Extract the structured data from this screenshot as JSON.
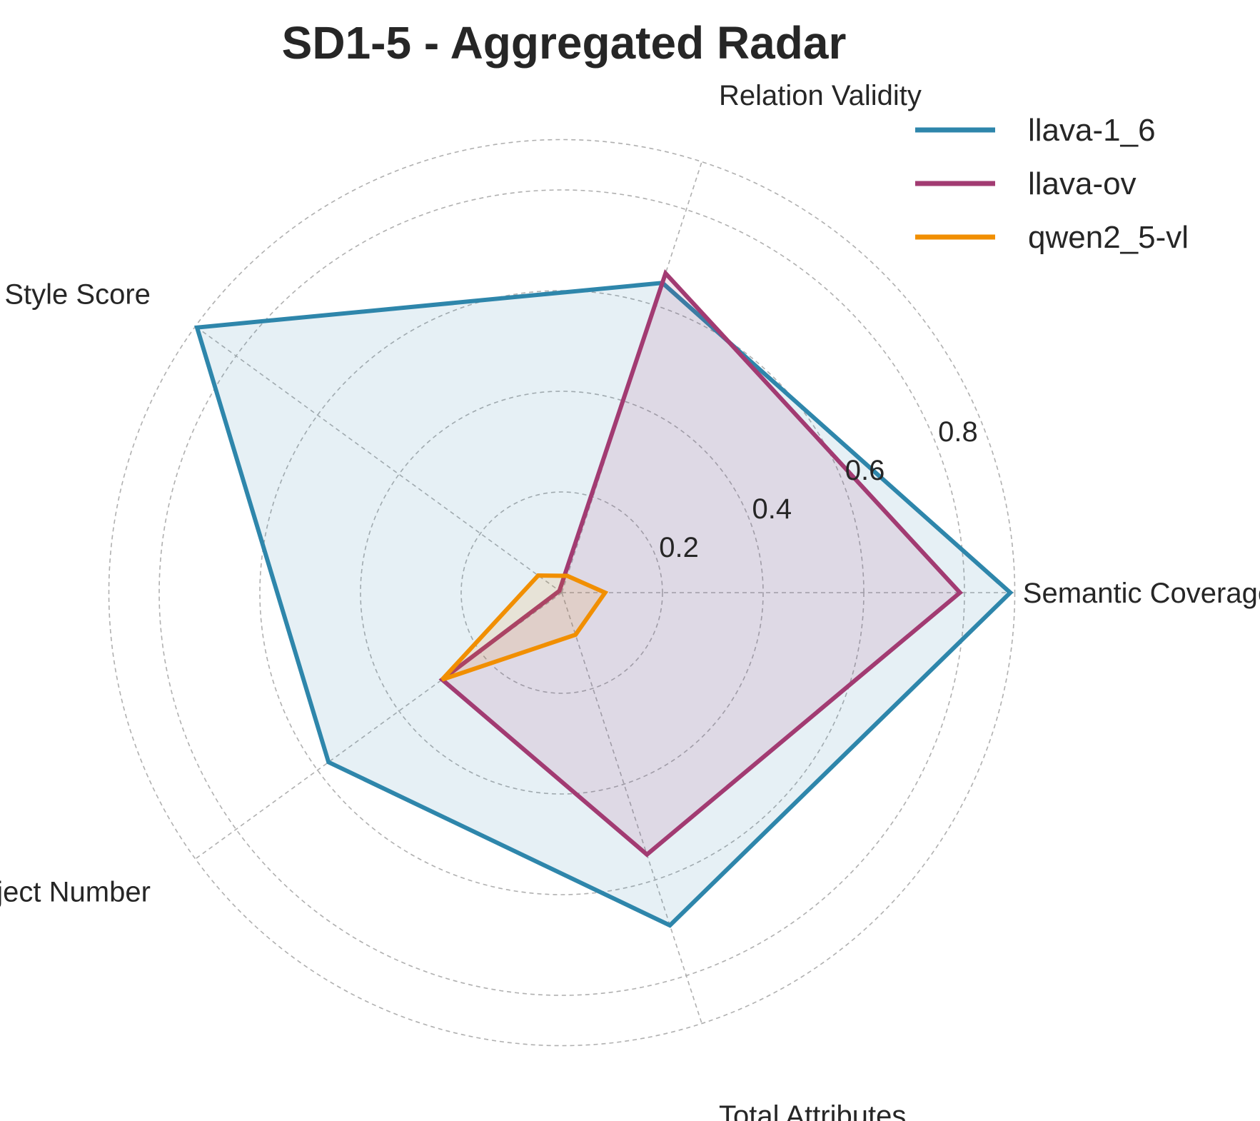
{
  "chart_data": {
    "type": "radar",
    "title": "SD1-5 - Aggregated Radar",
    "axes": [
      "Semantic Coverage",
      "Relation Validity",
      "Style Score",
      "Object Number",
      "Total Attributes"
    ],
    "rticks": [
      "0.2",
      "0.4",
      "0.6",
      "0.8"
    ],
    "rtick_values": [
      0.2,
      0.4,
      0.6,
      0.8
    ],
    "rmax": 0.8,
    "grid": true,
    "legend_position": "top-right",
    "series": [
      {
        "name": "llava-1_6",
        "color": "#2E86AB",
        "values": [
          0.891,
          0.647,
          0.896,
          0.573,
          0.695
        ]
      },
      {
        "name": "llava-ov",
        "color": "#A23B72",
        "values": [
          0.791,
          0.667,
          0.006,
          0.294,
          0.547
        ]
      },
      {
        "name": "qwen2_5-vl",
        "color": "#F18F01",
        "values": [
          0.086,
          0.035,
          0.058,
          0.294,
          0.088
        ]
      }
    ]
  }
}
